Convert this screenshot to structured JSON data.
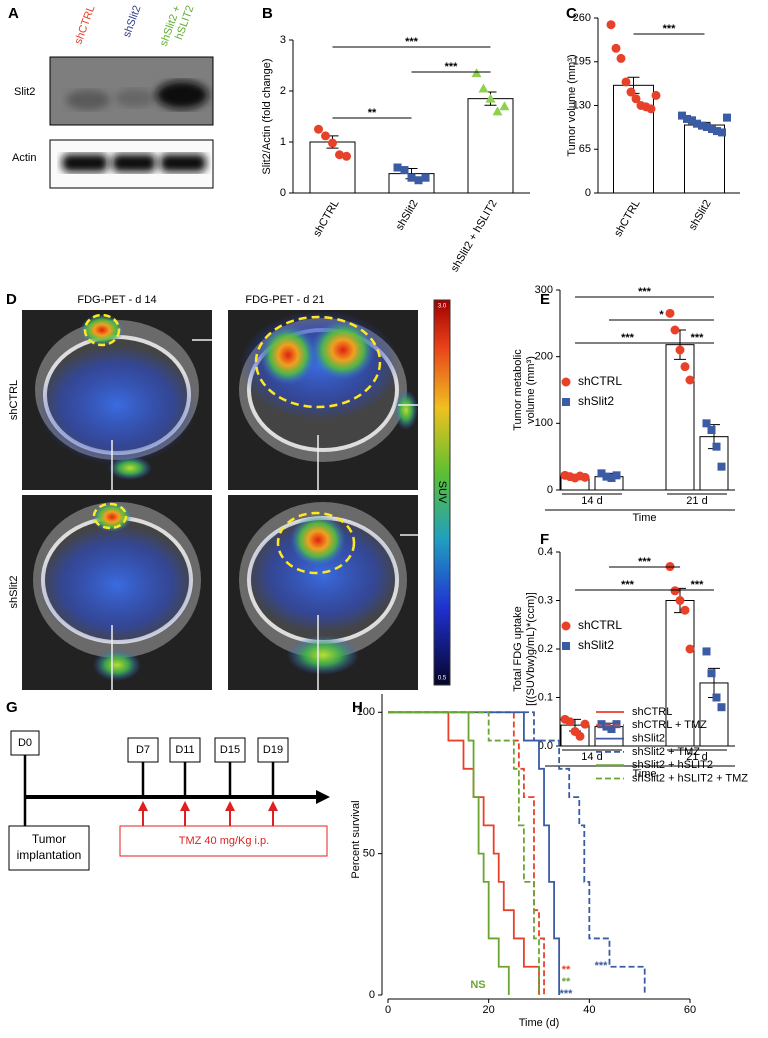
{
  "panel_labels": [
    "A",
    "B",
    "C",
    "D",
    "E",
    "F",
    "G",
    "H"
  ],
  "blot": {
    "lanes": [
      {
        "label_lines": [
          "shCTRL"
        ],
        "color": "#e8412a"
      },
      {
        "label_lines": [
          "shSlit2"
        ],
        "color": "#2d3f8f"
      },
      {
        "label_lines": [
          "shSlit2 +",
          "hSLIT2"
        ],
        "color": "#5fae2e"
      }
    ],
    "rows": [
      "Slit2",
      "Actin"
    ]
  },
  "pet": {
    "columns": [
      "FDG-PET - d 14",
      "FDG-PET - d 21"
    ],
    "rows": [
      "shCTRL",
      "shSlit2"
    ],
    "colorbar": {
      "label": "SUV",
      "max": "3.0",
      "min": "0.5"
    }
  },
  "timeline": {
    "days": [
      "D0",
      "D7",
      "D11",
      "D15",
      "D19"
    ],
    "start_label": [
      "Tumor",
      "implantation"
    ],
    "treatment": "TMZ 40 mg/Kg i.p."
  },
  "chart_data": [
    {
      "type": "bar",
      "ylabel": "Slit2/Actin (fold change)",
      "categories": [
        "shCTRL",
        "shSlit2",
        "shSlit2 + hSLIT2"
      ],
      "values": [
        1.0,
        0.38,
        1.85
      ],
      "errors": [
        0.12,
        0.1,
        0.13
      ],
      "points": [
        [
          1.25,
          1.12,
          0.98,
          0.75,
          0.72
        ],
        [
          0.5,
          0.45,
          0.3,
          0.25,
          0.3
        ],
        [
          2.35,
          2.05,
          1.85,
          1.6,
          1.7
        ]
      ],
      "colors": [
        "#e8412a",
        "#3b5ba5",
        "#8fd14f"
      ],
      "markers": [
        "circle",
        "square",
        "triangle"
      ],
      "ylim": [
        0,
        3
      ],
      "yticks": [
        0,
        1,
        2,
        3
      ],
      "comparisons": [
        {
          "between": [
            "shCTRL",
            "shSlit2 + hSLIT2"
          ],
          "label": "***"
        },
        {
          "between": [
            "shSlit2",
            "shSlit2 + hSLIT2"
          ],
          "label": "***"
        },
        {
          "between": [
            "shCTRL",
            "shSlit2"
          ],
          "label": "**"
        }
      ]
    },
    {
      "type": "bar",
      "ylabel": "Tumor volume (mm³)",
      "categories": [
        "shCTRL",
        "shSlit2"
      ],
      "values": [
        160,
        101
      ],
      "errors": [
        12,
        4
      ],
      "points": [
        [
          250,
          215,
          200,
          165,
          150,
          140,
          130,
          128,
          125,
          145
        ],
        [
          115,
          110,
          108,
          103,
          100,
          98,
          95,
          92,
          90,
          112
        ]
      ],
      "colors": [
        "#e8412a",
        "#3b5ba5"
      ],
      "markers": [
        "circle",
        "square"
      ],
      "ylim": [
        0,
        260
      ],
      "yticks": [
        0,
        65,
        130,
        195,
        260
      ],
      "comparisons": [
        {
          "between": [
            "shCTRL",
            "shSlit2"
          ],
          "label": "***"
        }
      ]
    },
    {
      "type": "bar",
      "ylabel": [
        "Tumor metabolic",
        "volume (mm³)"
      ],
      "xlabel": "Time",
      "categories": [
        "14 d",
        "21 d"
      ],
      "series": [
        {
          "name": "shCTRL",
          "color": "#e8412a",
          "marker": "circle",
          "values": [
            20,
            218
          ],
          "errors": [
            3,
            22
          ],
          "points": [
            [
              22,
              20,
              18,
              21,
              19
            ],
            [
              265,
              240,
              210,
              185,
              165
            ]
          ]
        },
        {
          "name": "shSlit2",
          "color": "#3b5ba5",
          "marker": "square",
          "values": [
            20,
            80
          ],
          "errors": [
            5,
            18
          ],
          "points": [
            [
              25,
              20,
              18,
              22
            ],
            [
              100,
              90,
              65,
              35
            ]
          ]
        }
      ],
      "ylim": [
        0,
        300
      ],
      "yticks": [
        0,
        100,
        200,
        300
      ],
      "comparisons": [
        {
          "between": [
            [
              "14 d",
              "shCTRL"
            ],
            [
              "21 d",
              "shSlit2"
            ]
          ],
          "label": "***"
        },
        {
          "between": [
            [
              "14 d",
              "shSlit2"
            ],
            [
              "21 d",
              "shSlit2"
            ]
          ],
          "label": "*"
        },
        {
          "between": [
            [
              "14 d",
              "shCTRL"
            ],
            [
              "21 d",
              "shCTRL"
            ]
          ],
          "label": "***"
        },
        {
          "between": [
            [
              "21 d",
              "shCTRL"
            ],
            [
              "21 d",
              "shSlit2"
            ]
          ],
          "label": "***"
        }
      ]
    },
    {
      "type": "bar",
      "ylabel": [
        "Total FDG uptake",
        "[((SUVbw)g/mL)*(ccm)]"
      ],
      "xlabel": "Time",
      "categories": [
        "14 d",
        "21 d"
      ],
      "series": [
        {
          "name": "shCTRL",
          "color": "#e8412a",
          "marker": "circle",
          "values": [
            0.043,
            0.3
          ],
          "errors": [
            0.012,
            0.025
          ],
          "points": [
            [
              0.055,
              0.05,
              0.03,
              0.02,
              0.045
            ],
            [
              0.37,
              0.32,
              0.3,
              0.28,
              0.2
            ]
          ]
        },
        {
          "name": "shSlit2",
          "color": "#3b5ba5",
          "marker": "square",
          "values": [
            0.04,
            0.13
          ],
          "errors": [
            0.007,
            0.03
          ],
          "points": [
            [
              0.045,
              0.04,
              0.035,
              0.045
            ],
            [
              0.195,
              0.15,
              0.1,
              0.08
            ]
          ]
        }
      ],
      "ylim": [
        0,
        0.4
      ],
      "yticks": [
        {
          "value": 0,
          "label": "0.0"
        },
        0.1,
        0.2,
        0.3,
        0.4
      ],
      "comparisons": [
        {
          "between": [
            [
              "14 d",
              "shSlit2"
            ],
            [
              "21 d",
              "shCTRL"
            ]
          ],
          "label": "***"
        },
        {
          "between": [
            [
              "14 d",
              "shCTRL"
            ],
            [
              "21 d",
              "shCTRL"
            ]
          ],
          "label": "***"
        },
        {
          "between": [
            [
              "21 d",
              "shCTRL"
            ],
            [
              "21 d",
              "shSlit2"
            ]
          ],
          "label": "***"
        }
      ]
    },
    {
      "type": "line",
      "xlabel": "Time (d)",
      "ylabel": "Percent survival",
      "xlim": [
        0,
        60
      ],
      "xticks": [
        0,
        20,
        40,
        60
      ],
      "ylim": [
        0,
        110
      ],
      "yticks": [
        0,
        50,
        100
      ],
      "series": [
        {
          "name": "shCTRL",
          "color": "#e8412a",
          "dashed": false,
          "x": [
            0,
            12,
            12,
            15,
            15,
            17,
            17,
            19,
            19,
            21,
            21,
            22,
            22,
            23,
            23,
            25,
            25,
            27,
            27,
            30,
            30
          ],
          "values": [
            100,
            100,
            90,
            90,
            80,
            80,
            70,
            70,
            60,
            60,
            50,
            50,
            40,
            40,
            30,
            30,
            20,
            20,
            10,
            10,
            0
          ]
        },
        {
          "name": "shCTRL + TMZ",
          "color": "#e8412a",
          "dashed": true,
          "x": [
            0,
            25,
            25,
            26,
            26,
            27,
            27,
            29,
            29,
            30,
            30,
            31,
            31
          ],
          "values": [
            100,
            100,
            90,
            90,
            80,
            80,
            70,
            70,
            30,
            30,
            20,
            20,
            0
          ]
        },
        {
          "name": "shSlit2",
          "color": "#3b5ba5",
          "dashed": false,
          "x": [
            0,
            27,
            27,
            30,
            30,
            31,
            31,
            32,
            32,
            33,
            33,
            34,
            34
          ],
          "values": [
            100,
            100,
            90,
            90,
            80,
            80,
            60,
            60,
            40,
            40,
            20,
            20,
            0
          ]
        },
        {
          "name": "shSlit2 + TMZ",
          "color": "#3b5ba5",
          "dashed": true,
          "x": [
            0,
            29,
            29,
            34,
            34,
            36,
            36,
            38,
            38,
            39,
            39,
            40,
            40,
            44,
            44,
            47,
            47,
            51,
            51
          ],
          "values": [
            100,
            100,
            90,
            90,
            80,
            80,
            70,
            70,
            60,
            60,
            40,
            40,
            20,
            20,
            10,
            10,
            10,
            10,
            0
          ]
        },
        {
          "name": "shSlit2 + hSLIT2",
          "color": "#6aa532",
          "dashed": false,
          "x": [
            0,
            16,
            16,
            17,
            17,
            18,
            18,
            19,
            19,
            20,
            20,
            22,
            22,
            24,
            24
          ],
          "values": [
            100,
            100,
            90,
            90,
            70,
            70,
            50,
            50,
            40,
            40,
            20,
            20,
            10,
            10,
            0
          ]
        },
        {
          "name": "shSlit2 + hSLIT2 + TMZ",
          "color": "#6aa532",
          "dashed": true,
          "x": [
            0,
            20,
            20,
            25,
            25,
            26,
            26,
            27,
            27,
            29,
            29,
            30,
            30
          ],
          "values": [
            100,
            100,
            90,
            90,
            80,
            80,
            60,
            60,
            40,
            40,
            20,
            20,
            0
          ]
        }
      ],
      "annotations": [
        {
          "text": "**",
          "color": "#e8412a"
        },
        {
          "text": "**",
          "color": "#6aa532"
        },
        {
          "text": "***",
          "color": "#3b5ba5"
        },
        {
          "text": "***",
          "color": "#3b5ba5"
        },
        {
          "text": "NS",
          "color": "#6aa532"
        }
      ]
    }
  ]
}
